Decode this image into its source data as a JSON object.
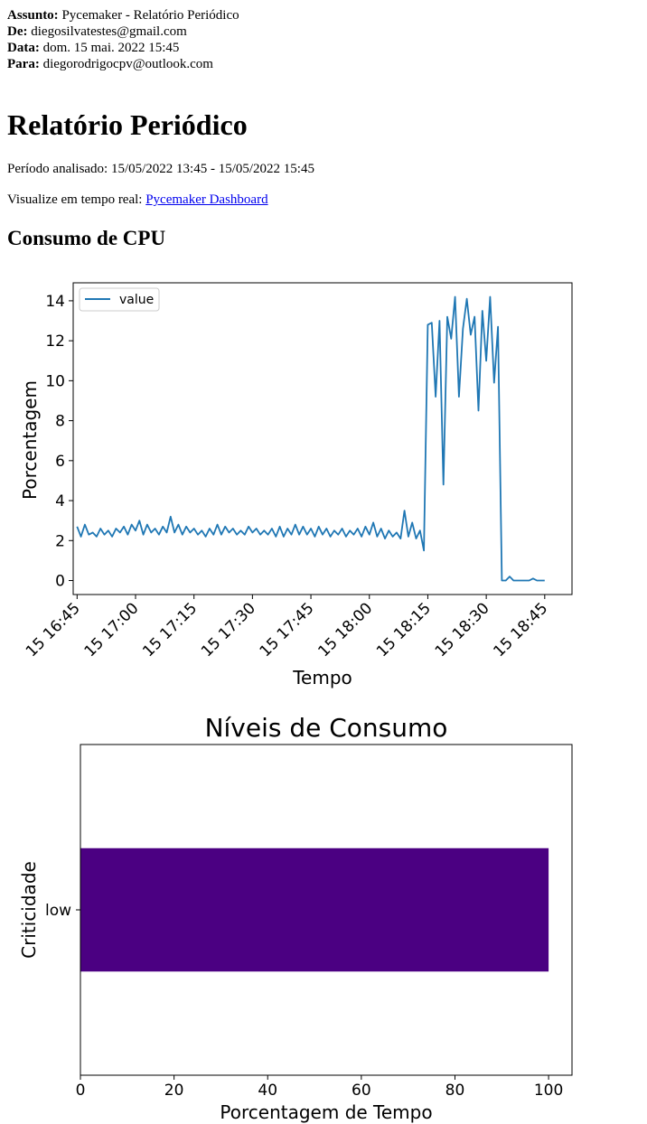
{
  "email": {
    "subject_label": "Assunto:",
    "subject": "Pycemaker - Relatório Periódico",
    "from_label": "De:",
    "from": "diegosilvatestes@gmail.com",
    "date_label": "Data:",
    "date": "dom. 15 mai. 2022 15:45",
    "to_label": "Para:",
    "to": "diegorodrigocpv@outlook.com"
  },
  "report": {
    "title": "Relatório Periódico",
    "period_text": "Período analisado: 15/05/2022 13:45 - 15/05/2022 15:45",
    "realtime_prefix": "Visualize em tempo real: ",
    "dashboard_link": "Pycemaker Dashboard",
    "cpu_heading": "Consumo de CPU"
  },
  "colors": {
    "line": "#1f77b4",
    "bar": "#4b0082",
    "link": "#0000ee"
  },
  "chart_data": [
    {
      "type": "line",
      "title": "",
      "xlabel": "Tempo",
      "ylabel": "Porcentagem",
      "x_tick_labels": [
        "15 16:45",
        "15 17:00",
        "15 17:15",
        "15 17:30",
        "15 17:45",
        "15 18:00",
        "15 18:15",
        "15 18:30",
        "15 18:45"
      ],
      "y_tick_labels": [
        "0",
        "2",
        "4",
        "6",
        "8",
        "10",
        "12",
        "14"
      ],
      "xlim": [
        "2022-05-15 16:44",
        "2022-05-15 18:52"
      ],
      "ylim": [
        -0.7,
        14.9
      ],
      "legend": "top-left",
      "grid": false,
      "series": [
        {
          "name": "value",
          "points": [
            [
              "2022-05-15 16:45",
              2.7
            ],
            [
              "2022-05-15 16:46",
              2.2
            ],
            [
              "2022-05-15 16:47",
              2.8
            ],
            [
              "2022-05-15 16:48",
              2.3
            ],
            [
              "2022-05-15 16:49",
              2.4
            ],
            [
              "2022-05-15 16:50",
              2.2
            ],
            [
              "2022-05-15 16:51",
              2.6
            ],
            [
              "2022-05-15 16:52",
              2.3
            ],
            [
              "2022-05-15 16:53",
              2.5
            ],
            [
              "2022-05-15 16:54",
              2.2
            ],
            [
              "2022-05-15 16:55",
              2.6
            ],
            [
              "2022-05-15 16:56",
              2.4
            ],
            [
              "2022-05-15 16:57",
              2.7
            ],
            [
              "2022-05-15 16:58",
              2.3
            ],
            [
              "2022-05-15 16:59",
              2.8
            ],
            [
              "2022-05-15 17:00",
              2.5
            ],
            [
              "2022-05-15 17:01",
              3.0
            ],
            [
              "2022-05-15 17:02",
              2.3
            ],
            [
              "2022-05-15 17:03",
              2.8
            ],
            [
              "2022-05-15 17:04",
              2.4
            ],
            [
              "2022-05-15 17:05",
              2.6
            ],
            [
              "2022-05-15 17:06",
              2.3
            ],
            [
              "2022-05-15 17:07",
              2.7
            ],
            [
              "2022-05-15 17:08",
              2.4
            ],
            [
              "2022-05-15 17:09",
              3.2
            ],
            [
              "2022-05-15 17:10",
              2.4
            ],
            [
              "2022-05-15 17:11",
              2.8
            ],
            [
              "2022-05-15 17:12",
              2.3
            ],
            [
              "2022-05-15 17:13",
              2.7
            ],
            [
              "2022-05-15 17:14",
              2.4
            ],
            [
              "2022-05-15 17:15",
              2.6
            ],
            [
              "2022-05-15 17:16",
              2.3
            ],
            [
              "2022-05-15 17:17",
              2.5
            ],
            [
              "2022-05-15 17:18",
              2.2
            ],
            [
              "2022-05-15 17:19",
              2.6
            ],
            [
              "2022-05-15 17:20",
              2.3
            ],
            [
              "2022-05-15 17:21",
              2.8
            ],
            [
              "2022-05-15 17:22",
              2.3
            ],
            [
              "2022-05-15 17:23",
              2.7
            ],
            [
              "2022-05-15 17:24",
              2.4
            ],
            [
              "2022-05-15 17:25",
              2.6
            ],
            [
              "2022-05-15 17:26",
              2.3
            ],
            [
              "2022-05-15 17:27",
              2.5
            ],
            [
              "2022-05-15 17:28",
              2.3
            ],
            [
              "2022-05-15 17:29",
              2.7
            ],
            [
              "2022-05-15 17:30",
              2.4
            ],
            [
              "2022-05-15 17:31",
              2.6
            ],
            [
              "2022-05-15 17:32",
              2.3
            ],
            [
              "2022-05-15 17:33",
              2.5
            ],
            [
              "2022-05-15 17:34",
              2.3
            ],
            [
              "2022-05-15 17:35",
              2.6
            ],
            [
              "2022-05-15 17:36",
              2.2
            ],
            [
              "2022-05-15 17:37",
              2.7
            ],
            [
              "2022-05-15 17:38",
              2.2
            ],
            [
              "2022-05-15 17:39",
              2.6
            ],
            [
              "2022-05-15 17:40",
              2.3
            ],
            [
              "2022-05-15 17:41",
              2.8
            ],
            [
              "2022-05-15 17:42",
              2.3
            ],
            [
              "2022-05-15 17:43",
              2.7
            ],
            [
              "2022-05-15 17:44",
              2.3
            ],
            [
              "2022-05-15 17:45",
              2.6
            ],
            [
              "2022-05-15 17:46",
              2.2
            ],
            [
              "2022-05-15 17:47",
              2.7
            ],
            [
              "2022-05-15 17:48",
              2.3
            ],
            [
              "2022-05-15 17:49",
              2.6
            ],
            [
              "2022-05-15 17:50",
              2.2
            ],
            [
              "2022-05-15 17:51",
              2.5
            ],
            [
              "2022-05-15 17:52",
              2.3
            ],
            [
              "2022-05-15 17:53",
              2.6
            ],
            [
              "2022-05-15 17:54",
              2.2
            ],
            [
              "2022-05-15 17:55",
              2.5
            ],
            [
              "2022-05-15 17:56",
              2.3
            ],
            [
              "2022-05-15 17:57",
              2.6
            ],
            [
              "2022-05-15 17:58",
              2.2
            ],
            [
              "2022-05-15 17:59",
              2.7
            ],
            [
              "2022-05-15 18:00",
              2.3
            ],
            [
              "2022-05-15 18:01",
              2.9
            ],
            [
              "2022-05-15 18:02",
              2.2
            ],
            [
              "2022-05-15 18:03",
              2.6
            ],
            [
              "2022-05-15 18:04",
              2.1
            ],
            [
              "2022-05-15 18:05",
              2.5
            ],
            [
              "2022-05-15 18:06",
              2.2
            ],
            [
              "2022-05-15 18:07",
              2.4
            ],
            [
              "2022-05-15 18:08",
              2.1
            ],
            [
              "2022-05-15 18:09",
              3.5
            ],
            [
              "2022-05-15 18:10",
              2.2
            ],
            [
              "2022-05-15 18:11",
              2.9
            ],
            [
              "2022-05-15 18:12",
              2.1
            ],
            [
              "2022-05-15 18:13",
              2.5
            ],
            [
              "2022-05-15 18:14",
              1.5
            ],
            [
              "2022-05-15 18:15",
              12.8
            ],
            [
              "2022-05-15 18:16",
              12.9
            ],
            [
              "2022-05-15 18:17",
              9.2
            ],
            [
              "2022-05-15 18:18",
              13.0
            ],
            [
              "2022-05-15 18:19",
              4.8
            ],
            [
              "2022-05-15 18:20",
              13.2
            ],
            [
              "2022-05-15 18:21",
              12.1
            ],
            [
              "2022-05-15 18:22",
              14.2
            ],
            [
              "2022-05-15 18:23",
              9.2
            ],
            [
              "2022-05-15 18:24",
              12.6
            ],
            [
              "2022-05-15 18:25",
              14.1
            ],
            [
              "2022-05-15 18:26",
              12.3
            ],
            [
              "2022-05-15 18:27",
              13.2
            ],
            [
              "2022-05-15 18:28",
              8.5
            ],
            [
              "2022-05-15 18:29",
              13.5
            ],
            [
              "2022-05-15 18:30",
              11.0
            ],
            [
              "2022-05-15 18:31",
              14.2
            ],
            [
              "2022-05-15 18:32",
              9.9
            ],
            [
              "2022-05-15 18:33",
              12.7
            ],
            [
              "2022-05-15 18:34",
              0.0
            ],
            [
              "2022-05-15 18:35",
              0.0
            ],
            [
              "2022-05-15 18:36",
              0.2
            ],
            [
              "2022-05-15 18:37",
              0.0
            ],
            [
              "2022-05-15 18:38",
              0.0
            ],
            [
              "2022-05-15 18:39",
              0.0
            ],
            [
              "2022-05-15 18:40",
              0.0
            ],
            [
              "2022-05-15 18:41",
              0.0
            ],
            [
              "2022-05-15 18:42",
              0.1
            ],
            [
              "2022-05-15 18:43",
              0.0
            ],
            [
              "2022-05-15 18:44",
              0.0
            ],
            [
              "2022-05-15 18:45",
              0.0
            ]
          ]
        }
      ]
    },
    {
      "type": "bar",
      "orientation": "horizontal",
      "title": "Níveis de Consumo",
      "xlabel": "Porcentagem de Tempo",
      "ylabel": "Criticidade",
      "categories": [
        "low"
      ],
      "values": [
        100
      ],
      "xlim": [
        0,
        105
      ],
      "x_tick_labels": [
        "0",
        "20",
        "40",
        "60",
        "80",
        "100"
      ],
      "grid": false
    }
  ]
}
